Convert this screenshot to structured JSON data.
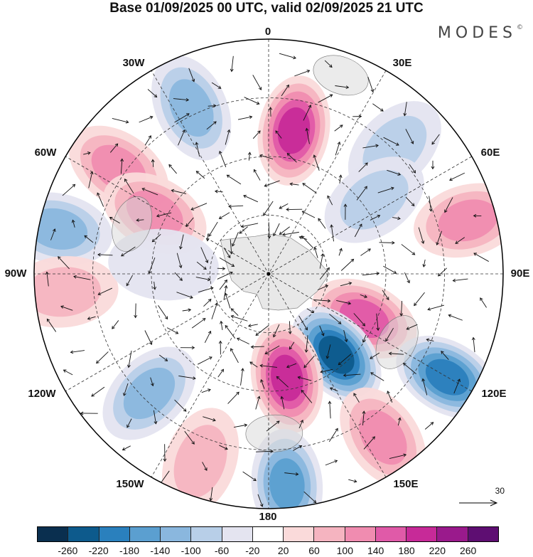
{
  "title": "Base 01/09/2025 00 UTC, valid 02/09/2025 21 UTC",
  "brand": {
    "name": "MODES",
    "mark": "©"
  },
  "longitude_labels": {
    "top": "0",
    "bottom": "180",
    "left": "90W",
    "right": "90E",
    "w30": "30W",
    "e30": "30E",
    "w60": "60W",
    "e60": "60E",
    "w120": "120W",
    "e120": "120E",
    "w150": "150W",
    "e150": "150E"
  },
  "reference_vector": {
    "value": "30"
  },
  "colorbar": {
    "colors": [
      "#0a2f4f",
      "#0d5a8c",
      "#2a80bd",
      "#5b9fd0",
      "#8ab7de",
      "#b8cfe8",
      "#e4e4f0",
      "#ffffff",
      "#fadada",
      "#f5b4c0",
      "#f08cb0",
      "#e05aa8",
      "#c72a98",
      "#9a1a8c",
      "#5e0e72"
    ],
    "ticks": [
      "-260",
      "-220",
      "-180",
      "-140",
      "-100",
      "-60",
      "-20",
      "20",
      "60",
      "100",
      "140",
      "180",
      "220",
      "260"
    ]
  },
  "anomaly_centers": [
    {
      "lon": -25,
      "lat_dist": 0.78,
      "value": -120
    },
    {
      "lon": 10,
      "lat_dist": 0.62,
      "value": 210
    },
    {
      "lon": 45,
      "lat_dist": 0.76,
      "value": -110
    },
    {
      "lon": 55,
      "lat_dist": 0.55,
      "value": -90
    },
    {
      "lon": 75,
      "lat_dist": 0.88,
      "value": 150
    },
    {
      "lon": -55,
      "lat_dist": 0.78,
      "value": 130
    },
    {
      "lon": -62,
      "lat_dist": 0.55,
      "value": 150
    },
    {
      "lon": -78,
      "lat_dist": 0.92,
      "value": -150
    },
    {
      "lon": -95,
      "lat_dist": 0.88,
      "value": 100
    },
    {
      "lon": -85,
      "lat_dist": 0.45,
      "value": -60
    },
    {
      "lon": 115,
      "lat_dist": 0.45,
      "value": 180
    },
    {
      "lon": 140,
      "lat_dist": 0.45,
      "value": -250
    },
    {
      "lon": 120,
      "lat_dist": 0.88,
      "value": -200
    },
    {
      "lon": 170,
      "lat_dist": 0.45,
      "value": 200
    },
    {
      "lon": -135,
      "lat_dist": 0.72,
      "value": -150
    },
    {
      "lon": -160,
      "lat_dist": 0.85,
      "value": 110
    },
    {
      "lon": 175,
      "lat_dist": 0.9,
      "value": -190
    },
    {
      "lon": 145,
      "lat_dist": 0.85,
      "value": 140
    }
  ]
}
